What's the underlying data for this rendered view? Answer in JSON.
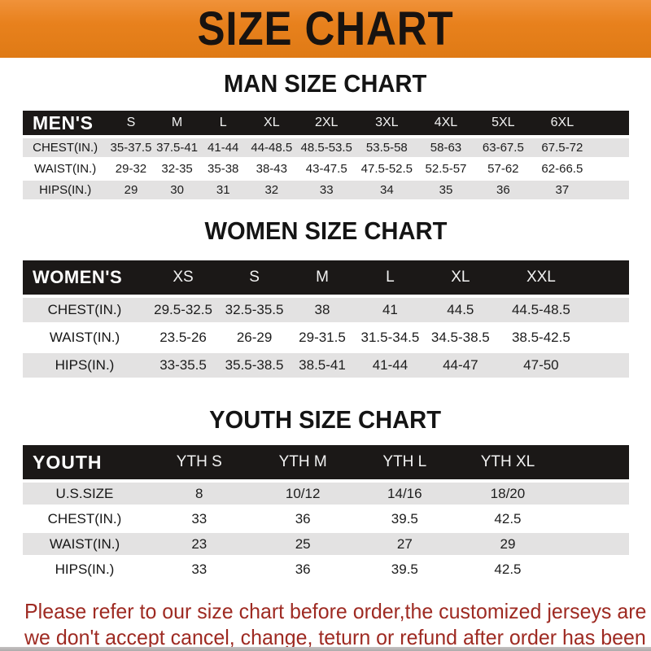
{
  "banner": {
    "title": "SIZE CHART",
    "bg_color": "#e8811d",
    "text_color": "#181310"
  },
  "sections": [
    {
      "heading": "MAN SIZE CHART",
      "table": {
        "header_label": "MEN'S",
        "columns": [
          "S",
          "M",
          "L",
          "XL",
          "2XL",
          "3XL",
          "4XL",
          "5XL",
          "6XL"
        ],
        "rows": [
          {
            "label": "CHEST(IN.)",
            "values": [
              "35-37.5",
              "37.5-41",
              "41-44",
              "44-48.5",
              "48.5-53.5",
              "53.5-58",
              "58-63",
              "63-67.5",
              "67.5-72"
            ]
          },
          {
            "label": "WAIST(IN.)",
            "values": [
              "29-32",
              "32-35",
              "35-38",
              "38-43",
              "43-47.5",
              "47.5-52.5",
              "52.5-57",
              "57-62",
              "62-66.5"
            ]
          },
          {
            "label": "HIPS(IN.)",
            "values": [
              "29",
              "30",
              "31",
              "32",
              "33",
              "34",
              "35",
              "36",
              "37"
            ]
          }
        ]
      }
    },
    {
      "heading": "WOMEN SIZE CHART",
      "table": {
        "header_label": "WOMEN'S",
        "columns": [
          "XS",
          "S",
          "M",
          "L",
          "XL",
          "XXL"
        ],
        "rows": [
          {
            "label": "CHEST(IN.)",
            "values": [
              "29.5-32.5",
              "32.5-35.5",
              "38",
              "41",
              "44.5",
              "44.5-48.5"
            ]
          },
          {
            "label": "WAIST(IN.)",
            "values": [
              "23.5-26",
              "26-29",
              "29-31.5",
              "31.5-34.5",
              "34.5-38.5",
              "38.5-42.5"
            ]
          },
          {
            "label": "HIPS(IN.)",
            "values": [
              "33-35.5",
              "35.5-38.5",
              "38.5-41",
              "41-44",
              "44-47",
              "47-50"
            ]
          }
        ]
      }
    },
    {
      "heading": "YOUTH SIZE CHART",
      "table": {
        "header_label": "YOUTH",
        "columns": [
          "YTH S",
          "YTH M",
          "YTH L",
          "YTH XL"
        ],
        "rows": [
          {
            "label": "U.S.SIZE",
            "values": [
              "8",
              "10/12",
              "14/16",
              "18/20"
            ]
          },
          {
            "label": "CHEST(IN.)",
            "values": [
              "33",
              "36",
              "39.5",
              "42.5"
            ]
          },
          {
            "label": "WAIST(IN.)",
            "values": [
              "23",
              "25",
              "27",
              "29"
            ]
          },
          {
            "label": "HIPS(IN.)",
            "values": [
              "33",
              "36",
              "39.5",
              "42.5"
            ]
          }
        ]
      }
    }
  ],
  "disclaimer": {
    "line1": "Please refer to our size chart before order,the customized jerseys are special products,",
    "line2": "we don't accept cancel, change, teturn or refund after order has been placed!",
    "color": "#9e2a22"
  }
}
